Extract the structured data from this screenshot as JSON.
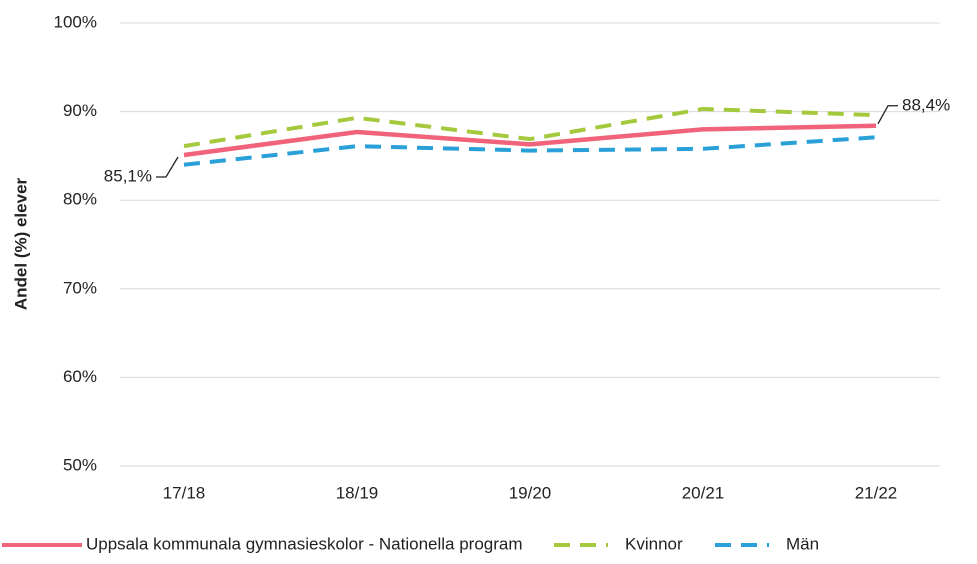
{
  "chart_data": {
    "type": "line",
    "y_label": "Andel (%) elever",
    "categories": [
      "17/18",
      "18/19",
      "19/20",
      "20/21",
      "21/22"
    ],
    "series": [
      {
        "name": "Uppsala kommunala gymnasieskolor - Nationella program",
        "color": "#f0637a",
        "dash": "solid",
        "values": [
          85.1,
          87.7,
          86.3,
          88.0,
          88.4
        ],
        "value_labels": [
          "85,1%",
          null,
          null,
          null,
          "88,4%"
        ]
      },
      {
        "name": "Kvinnor",
        "color": "#a5c93c",
        "dash": "dashed",
        "values": [
          86.1,
          89.3,
          86.9,
          90.3,
          89.6
        ]
      },
      {
        "name": "Män",
        "color": "#2aa0d8",
        "dash": "dashed",
        "values": [
          84.0,
          86.1,
          85.6,
          85.8,
          87.1
        ]
      }
    ],
    "ylim": [
      50,
      100
    ],
    "yticks": [
      {
        "value": 50,
        "label": "50%"
      },
      {
        "value": 60,
        "label": "60%"
      },
      {
        "value": 70,
        "label": "70%"
      },
      {
        "value": 80,
        "label": "80%"
      },
      {
        "value": 90,
        "label": "90%"
      },
      {
        "value": 100,
        "label": "100%"
      }
    ],
    "grid": true,
    "legend": "bottom"
  }
}
